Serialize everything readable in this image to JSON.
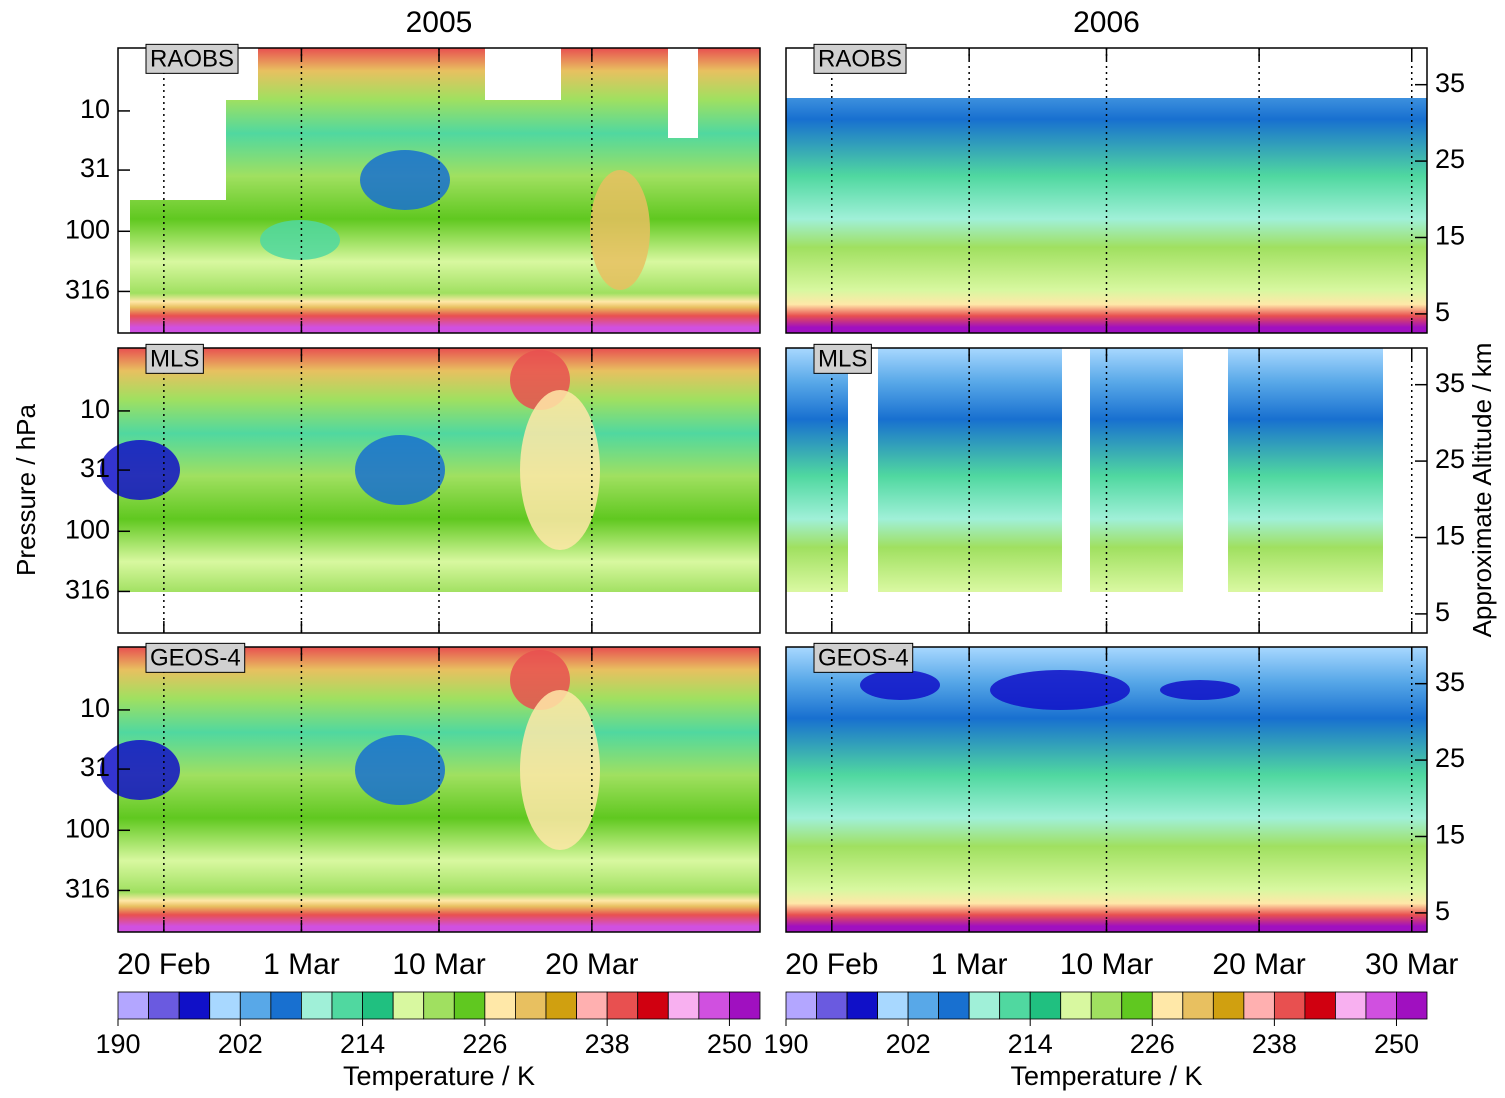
{
  "chart_data": {
    "type": "contour",
    "columns": [
      {
        "title": "2005",
        "xticks": [
          {
            "value": 51,
            "label": "20 Feb"
          },
          {
            "value": 60,
            "label": "1 Mar"
          },
          {
            "value": 69,
            "label": "10 Mar"
          },
          {
            "value": 79,
            "label": "20 Mar"
          }
        ]
      },
      {
        "title": "2006",
        "xticks": [
          {
            "value": 51,
            "label": "20 Feb"
          },
          {
            "value": 60,
            "label": "1 Mar"
          },
          {
            "value": 69,
            "label": "10 Mar"
          },
          {
            "value": 79,
            "label": "20 Mar"
          },
          {
            "value": 89,
            "label": "30 Mar"
          }
        ]
      }
    ],
    "panels": [
      "RAOBS",
      "MLS",
      "GEOS-4"
    ],
    "xlim": [
      48,
      90
    ],
    "ylabel": "Pressure / hPa",
    "yscale": "log",
    "ylim": [
      3,
      700
    ],
    "yticks": [
      10,
      31,
      100,
      316
    ],
    "y2label": "Approximate Altitude / km",
    "y2lim": [
      2.5,
      39.8
    ],
    "y2ticks": [
      5,
      15,
      25,
      35
    ],
    "grid": "dotted",
    "colorbar": {
      "label": "Temperature / K",
      "lim": [
        190,
        253
      ],
      "ticks": [
        190,
        202,
        214,
        226,
        238,
        250
      ],
      "colors": [
        "#b3a6ff",
        "#6a5ae0",
        "#1010c8",
        "#a8d8ff",
        "#58a8e8",
        "#1870d0",
        "#a0f0d8",
        "#50d8a0",
        "#20c080",
        "#d8f8a0",
        "#a0e060",
        "#60c820",
        "#ffe8a8",
        "#e8c060",
        "#d0a010",
        "#ffb0b0",
        "#e85050",
        "#d00010",
        "#f8b0f0",
        "#d050e0",
        "#a010c0"
      ]
    }
  }
}
